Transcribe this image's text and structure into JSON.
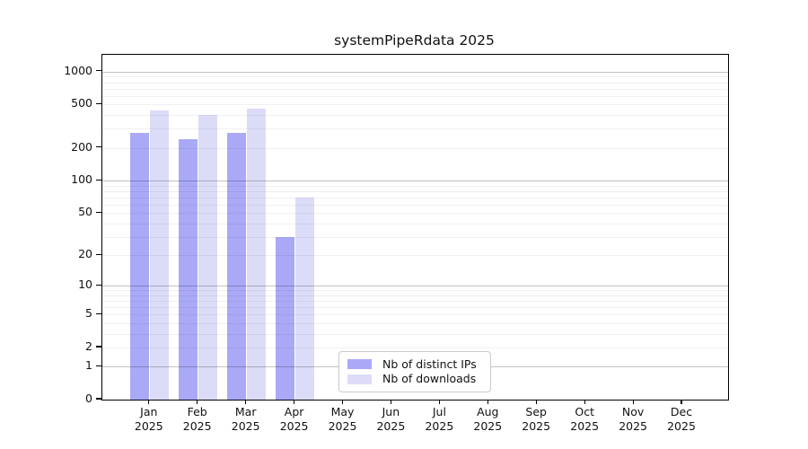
{
  "chart_data": {
    "type": "bar",
    "title": "systemPipeRdata 2025",
    "categories": [
      "Jan",
      "Feb",
      "Mar",
      "Apr",
      "May",
      "Jun",
      "Jul",
      "Aug",
      "Sep",
      "Oct",
      "Nov",
      "Dec"
    ],
    "x_year_label": "2025",
    "series": [
      {
        "name": "Nb of distinct IPs",
        "color": "#a9a9f8",
        "values": [
          275,
          240,
          275,
          30,
          null,
          null,
          null,
          null,
          null,
          null,
          null,
          null
        ]
      },
      {
        "name": "Nb of downloads",
        "color": "#dcdcf8",
        "values": [
          445,
          405,
          460,
          70,
          null,
          null,
          null,
          null,
          null,
          null,
          null,
          null
        ]
      }
    ],
    "yscale": "log1p",
    "yticks": [
      0,
      1,
      2,
      5,
      10,
      20,
      50,
      100,
      200,
      500,
      1000
    ],
    "ylim": [
      0,
      1430
    ],
    "xlabel": "",
    "ylabel": "",
    "grid": {
      "orientation": "horizontal",
      "major_values": [
        1,
        10,
        100,
        1000
      ],
      "major_color": "rgba(0,0,0,0.24)",
      "minor_color": "rgba(0,0,0,0.06)"
    },
    "legend_position": "inside-bottom-center"
  }
}
